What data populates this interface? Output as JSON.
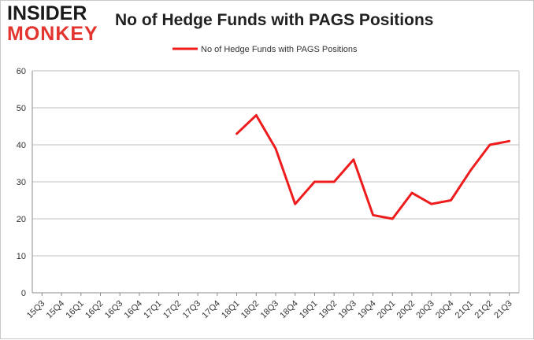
{
  "logo": {
    "line1": "INSIDER",
    "line2": "MONKEY"
  },
  "colors": {
    "series": "#ee1c1c",
    "grid": "#bfbfbf",
    "axis": "#888888"
  },
  "chart_data": {
    "type": "line",
    "title": "No of Hedge Funds with PAGS Positions",
    "xlabel": "",
    "ylabel": "",
    "ylim": [
      0,
      60
    ],
    "yticks": [
      0,
      10,
      20,
      30,
      40,
      50,
      60
    ],
    "grid": true,
    "legend_position": "top-center",
    "categories": [
      "15Q3",
      "15Q4",
      "16Q1",
      "16Q2",
      "16Q3",
      "16Q4",
      "17Q1",
      "17Q2",
      "17Q3",
      "17Q4",
      "18Q1",
      "18Q2",
      "18Q3",
      "18Q4",
      "19Q1",
      "19Q2",
      "19Q3",
      "19Q4",
      "20Q1",
      "20Q2",
      "20Q3",
      "20Q4",
      "21Q1",
      "21Q2",
      "21Q3"
    ],
    "series": [
      {
        "name": "No of Hedge Funds with PAGS Positions",
        "values": [
          null,
          null,
          null,
          null,
          null,
          null,
          null,
          null,
          null,
          null,
          43,
          48,
          39,
          24,
          30,
          30,
          36,
          21,
          20,
          27,
          24,
          25,
          33,
          40,
          41
        ]
      }
    ]
  }
}
